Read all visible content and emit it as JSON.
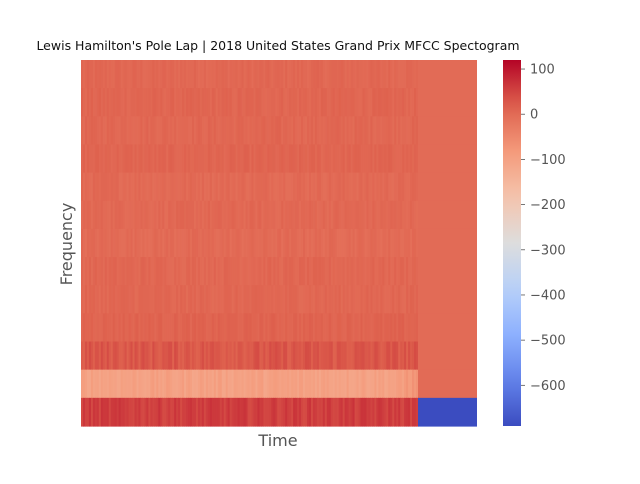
{
  "chart_data": {
    "type": "heatmap",
    "title": "Lewis Hamilton's Pole Lap | 2018 United States Grand Prix MFCC Spectogram",
    "xlabel": "Time",
    "ylabel": "Frequency",
    "colormap": "coolwarm",
    "colorbar": {
      "min": -690,
      "max": 120,
      "ticks": [
        100,
        0,
        -100,
        -200,
        -300,
        -400,
        -500,
        -600
      ],
      "tick_labels": [
        "100",
        "0",
        "−100",
        "−200",
        "−300",
        "−400",
        "−500",
        "−600"
      ]
    },
    "n_coefficients": 13,
    "coefficient_levels_top_to_bottom": [
      5,
      8,
      6,
      9,
      2,
      4,
      0,
      6,
      6,
      12,
      28,
      -100,
      55
    ],
    "silence_region_values_top_to_bottom": [
      0,
      0,
      0,
      0,
      0,
      0,
      0,
      0,
      0,
      0,
      0,
      0,
      -690
    ],
    "grid": false
  }
}
